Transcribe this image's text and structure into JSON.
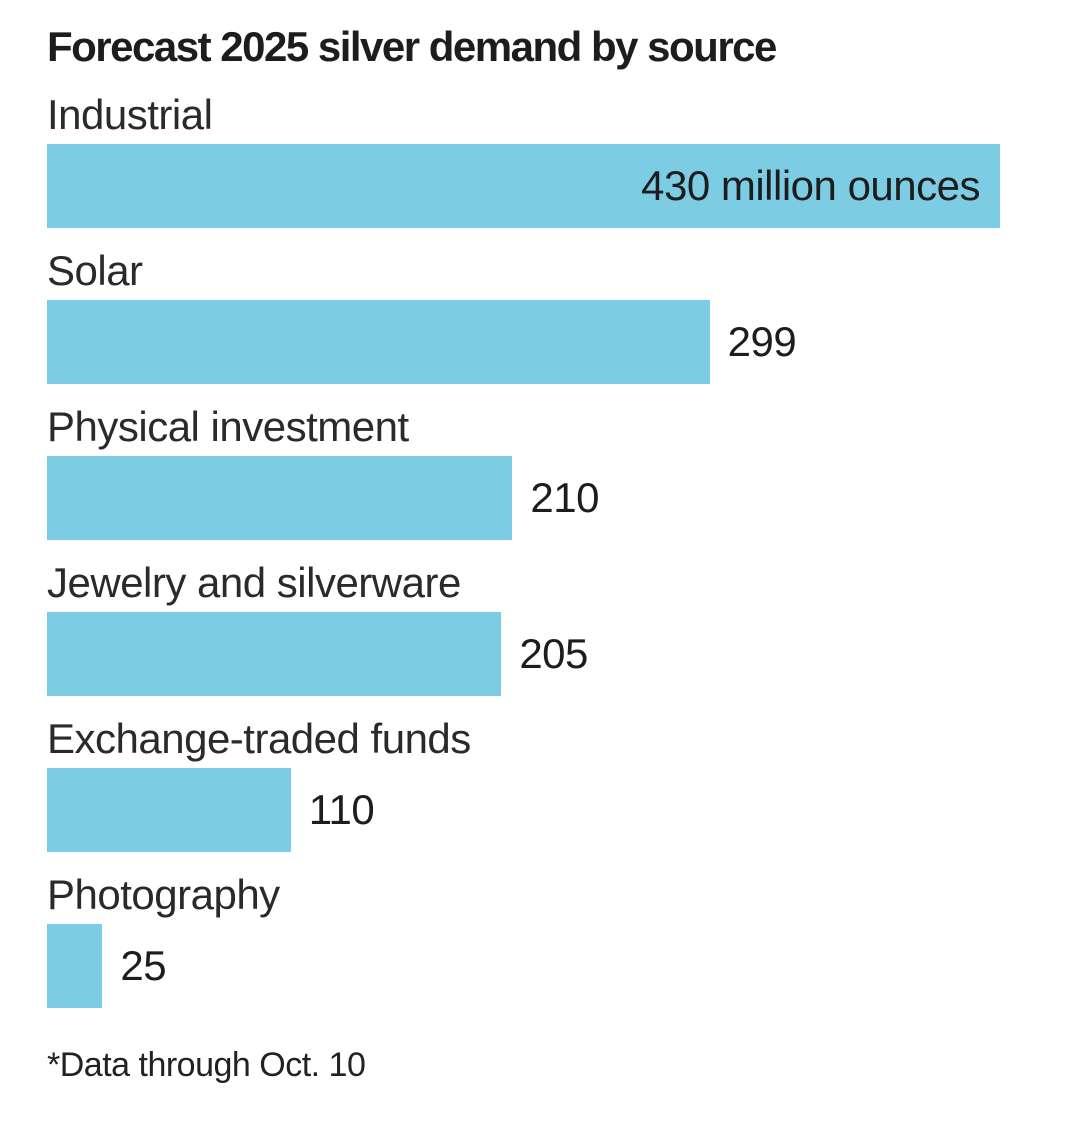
{
  "colors": {
    "bar": "#7CCDE3",
    "title_text": "#1d1d1d",
    "label_text": "#2a2a2a",
    "value_text": "#1d1d1d"
  },
  "chart_data": {
    "type": "bar",
    "orientation": "horizontal",
    "title": "Forecast 2025 silver demand by source",
    "categories": [
      "Industrial",
      "Solar",
      "Physical investment",
      "Jewelry and silverware",
      "Exchange-traded funds",
      "Photography"
    ],
    "values": [
      430,
      299,
      210,
      205,
      110,
      25
    ],
    "unit": "million ounces",
    "xlim": [
      0,
      430
    ],
    "grid": false,
    "legend": false,
    "footnote": "*Data through Oct. 10",
    "rows": [
      {
        "label": "Industrial",
        "value": 430,
        "value_label": "430 million ounces",
        "value_placement": "inside"
      },
      {
        "label": "Solar",
        "value": 299,
        "value_label": "299",
        "value_placement": "outside"
      },
      {
        "label": "Physical investment",
        "value": 210,
        "value_label": "210",
        "value_placement": "outside"
      },
      {
        "label": "Jewelry and silverware",
        "value": 205,
        "value_label": "205",
        "value_placement": "outside"
      },
      {
        "label": "Exchange-traded funds",
        "value": 110,
        "value_label": "110",
        "value_placement": "outside"
      },
      {
        "label": "Photography",
        "value": 25,
        "value_label": "25",
        "value_placement": "outside"
      }
    ]
  }
}
